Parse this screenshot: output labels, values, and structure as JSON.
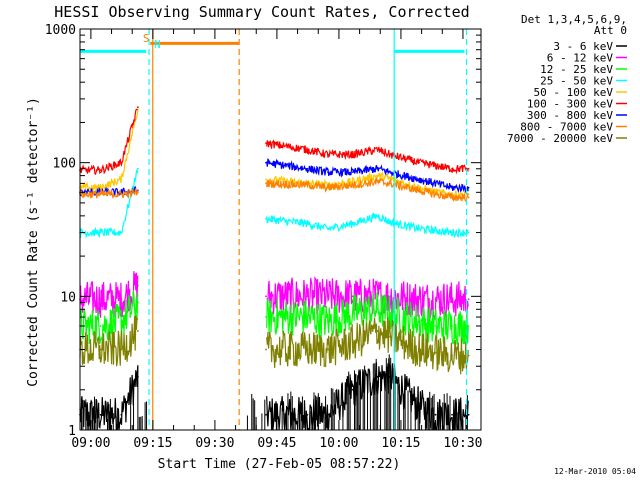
{
  "chart_data": {
    "type": "line",
    "title": "HESSI Observing Summary Count Rates, Corrected",
    "xlabel": "Start Time (27-Feb-05 08:57:22)",
    "ylabel": "Corrected Count Rate (s⁻¹ detector⁻¹)",
    "yscale": "log",
    "ylim": [
      1,
      1000
    ],
    "xlim_minutes": [
      0,
      97
    ],
    "x_ticks": [
      "09:00",
      "09:15",
      "09:30",
      "09:45",
      "10:00",
      "10:15",
      "10:30"
    ],
    "y_ticks": [
      "1",
      "10",
      "100",
      "1000"
    ],
    "legend_header": [
      "Det 1,3,4,5,6,9,",
      "Att 0"
    ],
    "legend_position": "right",
    "timestamp": "12-Mar-2010 05:04",
    "markers": {
      "S": "S",
      "N": "N"
    },
    "x_minutes": [
      0,
      5,
      10,
      14,
      16.5,
      40.5,
      45,
      55,
      60,
      66,
      72,
      75,
      82,
      86,
      90,
      94
    ],
    "series": [
      {
        "name": "3 - 6 keV",
        "color": "#000000",
        "values": [
          1.3,
          1.3,
          1.3,
          2.5,
          null,
          null,
          1.3,
          1.3,
          1.3,
          2.0,
          2.5,
          2.5,
          1.5,
          1.3,
          1.3,
          1.3
        ]
      },
      {
        "name": "6 - 12 keV",
        "color": "#ff00ff",
        "values": [
          9.5,
          9.5,
          9.5,
          12,
          null,
          null,
          10,
          10,
          10,
          10,
          10,
          10,
          9.5,
          9.5,
          9.5,
          9.5
        ]
      },
      {
        "name": "12 - 25 keV",
        "color": "#00ff00",
        "values": [
          6.0,
          6.0,
          6.5,
          9,
          null,
          null,
          7.0,
          7.0,
          6.5,
          7.5,
          8.0,
          7.5,
          6.5,
          6.0,
          6.0,
          6.0
        ]
      },
      {
        "name": "25 - 50 keV",
        "color": "#00ffff",
        "values": [
          30,
          30,
          30,
          90,
          null,
          null,
          38,
          35,
          32,
          35,
          40,
          36,
          32,
          31,
          30,
          30
        ]
      },
      {
        "name": "50 - 100 keV",
        "color": "#ffc800",
        "values": [
          65,
          65,
          75,
          250,
          null,
          null,
          75,
          70,
          68,
          72,
          80,
          76,
          65,
          60,
          58,
          58
        ]
      },
      {
        "name": "100 - 300 keV",
        "color": "#ff0000",
        "values": [
          88,
          88,
          100,
          260,
          null,
          null,
          140,
          125,
          115,
          115,
          125,
          115,
          100,
          95,
          90,
          90
        ]
      },
      {
        "name": "300 - 800 keV",
        "color": "#0000ff",
        "values": [
          60,
          60,
          60,
          62,
          null,
          null,
          100,
          90,
          85,
          85,
          90,
          85,
          75,
          70,
          65,
          65
        ]
      },
      {
        "name": "800 - 7000 keV",
        "color": "#ff8000",
        "values": [
          58,
          58,
          58,
          60,
          null,
          null,
          70,
          68,
          65,
          68,
          72,
          70,
          62,
          58,
          55,
          55
        ]
      },
      {
        "name": "7000 - 20000 keV",
        "color": "#808000",
        "values": [
          4.0,
          4.0,
          4.0,
          5.5,
          null,
          null,
          4.0,
          4.0,
          4.0,
          4.5,
          5.5,
          5.0,
          4.0,
          3.8,
          3.6,
          3.6
        ]
      }
    ],
    "attenuator_bars": [
      {
        "label": "att-bar-left",
        "color": "#00ffff",
        "start_min": 0,
        "end_min": 16,
        "level": 680
      },
      {
        "label": "att-bar-mid",
        "color": "#ff8000",
        "start_min": 17,
        "end_min": 38.5,
        "level": 780
      },
      {
        "label": "att-bar-right",
        "color": "#00ffff",
        "start_min": 76,
        "end_min": 93,
        "level": 680
      }
    ],
    "vlines": [
      {
        "label": "vline-cyan-1",
        "color": "#00ffff",
        "min": 16.7,
        "dashed": true
      },
      {
        "label": "vline-orange-1",
        "color": "#ff8000",
        "min": 17.6,
        "dashed": false
      },
      {
        "label": "vline-orange-2",
        "color": "#ff8000",
        "min": 38.5,
        "dashed": true
      },
      {
        "label": "vline-cyan-2",
        "color": "#00ffff",
        "min": 76.0,
        "dashed": false
      },
      {
        "label": "vline-cyan-3",
        "color": "#00ffff",
        "min": 93.5,
        "dashed": true
      }
    ]
  }
}
